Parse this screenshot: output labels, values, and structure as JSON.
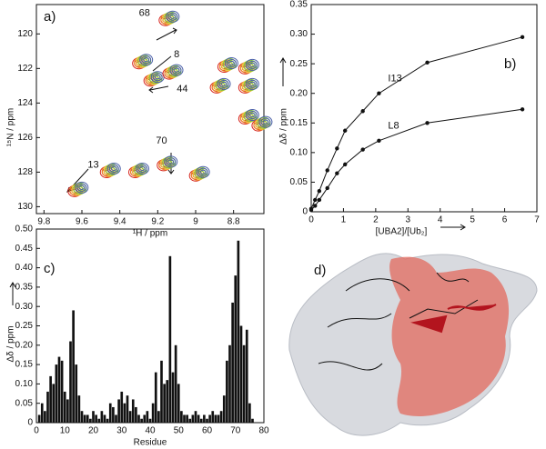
{
  "chart_data": [
    {
      "type": "contour",
      "panel_label": "a)",
      "xlabel": "¹H / ppm",
      "ylabel": "¹⁵N / ppm",
      "xlim": [
        9.84,
        8.64
      ],
      "xticks": [
        9.8,
        9.6,
        9.4,
        9.2,
        9.0,
        8.8
      ],
      "ylim": [
        130.4,
        118.3
      ],
      "yticks": [
        120,
        122,
        124,
        126,
        128,
        130
      ],
      "colors": [
        "#d7261e",
        "#f08a24",
        "#e3d23a",
        "#7cbf3a",
        "#4a5fa8"
      ],
      "peaks": {
        "x": [
          9.14,
          9.28,
          9.22,
          9.12,
          8.83,
          8.72,
          8.87,
          8.72,
          8.65,
          9.62,
          9.45,
          9.3,
          9.15,
          8.98,
          8.72
        ],
        "y": [
          119.1,
          121.6,
          122.6,
          122.2,
          121.8,
          121.9,
          123.0,
          124.8,
          125.2,
          129.0,
          127.9,
          127.9,
          127.5,
          128.1,
          123.0
        ]
      },
      "annotations": [
        {
          "text": "68",
          "x": 9.27,
          "y": 118.8
        },
        {
          "text": "8",
          "x": 9.1,
          "y": 121.2
        },
        {
          "text": "44",
          "x": 9.07,
          "y": 123.2
        },
        {
          "text": "13",
          "x": 9.54,
          "y": 127.6
        },
        {
          "text": "70",
          "x": 9.18,
          "y": 126.2
        }
      ]
    },
    {
      "type": "scatter",
      "panel_label": "b)",
      "xlabel": "[UBA2]/[Ub₂]",
      "ylabel": "Δδ / ppm",
      "xlim": [
        0,
        7
      ],
      "xticks": [
        0,
        1,
        2,
        3,
        4,
        5,
        6,
        7
      ],
      "ylim": [
        0,
        0.35
      ],
      "yticks": [
        0,
        0.05,
        {
          "value": 0.1,
          "label": "0.10"
        },
        0.15,
        {
          "value": 0.2,
          "label": "0.20"
        },
        0.25,
        {
          "value": 0.3,
          "label": "0.30"
        },
        0.35
      ],
      "x": [
        0,
        0.12,
        0.25,
        0.5,
        0.8,
        1.05,
        1.6,
        2.1,
        3.6,
        6.55
      ],
      "series": [
        {
          "name": "I13",
          "color": "#111111",
          "values": [
            0.005,
            0.02,
            0.035,
            0.07,
            0.107,
            0.137,
            0.17,
            0.2,
            0.252,
            0.295
          ]
        },
        {
          "name": "L8",
          "color": "#111111",
          "values": [
            0.003,
            0.01,
            0.02,
            0.04,
            0.065,
            0.08,
            0.105,
            0.12,
            0.15,
            0.173
          ]
        }
      ]
    },
    {
      "type": "bar",
      "panel_label": "c)",
      "xlabel": "Residue",
      "ylabel": "Δδ / ppm",
      "color": "#111111",
      "xlim": [
        0,
        80
      ],
      "xticks": [
        0,
        10,
        20,
        30,
        40,
        50,
        60,
        70,
        80
      ],
      "ylim": [
        0,
        0.5
      ],
      "yticks": [
        0,
        0.05,
        {
          "value": 0.1,
          "label": "0.10"
        },
        0.15,
        {
          "value": 0.2,
          "label": "0.20"
        },
        0.25,
        {
          "value": 0.3,
          "label": "0.30"
        },
        0.35,
        {
          "value": 0.4,
          "label": "0.40"
        },
        0.45,
        {
          "value": 0.5,
          "label": "0.50"
        }
      ],
      "x": [
        1,
        2,
        3,
        4,
        5,
        6,
        7,
        8,
        9,
        10,
        11,
        12,
        13,
        14,
        15,
        16,
        17,
        18,
        19,
        20,
        21,
        22,
        23,
        24,
        25,
        26,
        27,
        28,
        29,
        30,
        31,
        32,
        33,
        34,
        35,
        36,
        37,
        38,
        39,
        40,
        41,
        42,
        43,
        44,
        45,
        46,
        47,
        48,
        49,
        50,
        51,
        52,
        53,
        54,
        55,
        56,
        57,
        58,
        59,
        60,
        61,
        62,
        63,
        64,
        65,
        66,
        67,
        68,
        69,
        70,
        71,
        72,
        73,
        74,
        75,
        76
      ],
      "values": [
        0.02,
        0.05,
        0.03,
        0.08,
        0.12,
        0.1,
        0.15,
        0.17,
        0.16,
        0.08,
        0.06,
        0.21,
        0.29,
        0.15,
        0.07,
        0.03,
        0.02,
        0.02,
        0.01,
        0.03,
        0.02,
        0.01,
        0.03,
        0.02,
        0.01,
        0.05,
        0.04,
        0.02,
        0.06,
        0.08,
        0.05,
        0.07,
        0.03,
        0.06,
        0.04,
        0.02,
        0.01,
        0.02,
        0.03,
        0.01,
        0.05,
        0.13,
        0.03,
        0.16,
        0.1,
        0.11,
        0.43,
        0.13,
        0.2,
        0.1,
        0.03,
        0.02,
        0.02,
        0.01,
        0.02,
        0.03,
        0.02,
        0.01,
        0.02,
        0.01,
        0.02,
        0.03,
        0.02,
        0.02,
        0.03,
        0.07,
        0.16,
        0.2,
        0.31,
        0.38,
        0.47,
        0.25,
        0.2,
        0.24,
        0.05,
        0.01
      ]
    }
  ],
  "panel_d": {
    "label": "d)"
  }
}
